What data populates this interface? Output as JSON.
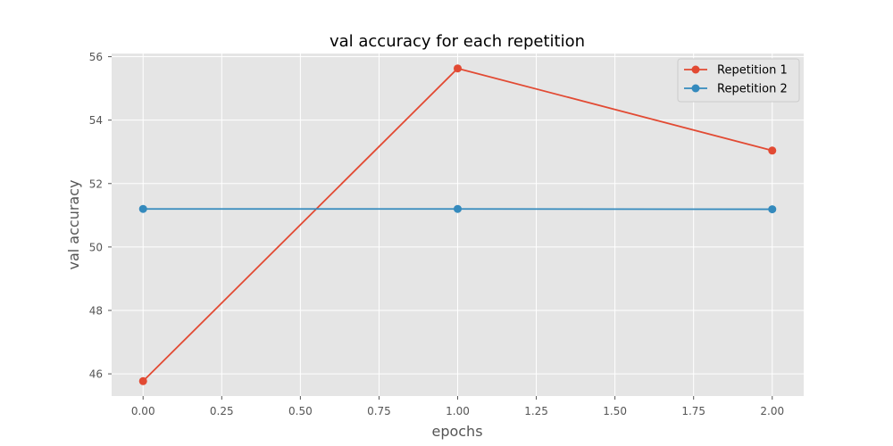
{
  "chart_data": {
    "type": "line",
    "title": "val accuracy for each repetition",
    "xlabel": "epochs",
    "ylabel": "val accuracy",
    "x": [
      0,
      1,
      2
    ],
    "xlim": [
      -0.1,
      2.1
    ],
    "ylim": [
      45.3,
      56.1
    ],
    "xticks": [
      "0.00",
      "0.25",
      "0.50",
      "0.75",
      "1.00",
      "1.25",
      "1.50",
      "1.75",
      "2.00"
    ],
    "yticks": [
      "46",
      "48",
      "50",
      "52",
      "54",
      "56"
    ],
    "grid": true,
    "legend_position": "upper right",
    "series": [
      {
        "name": "Repetition 1",
        "color": "#E24A33",
        "values": [
          45.77,
          55.63,
          53.04
        ]
      },
      {
        "name": "Repetition 2",
        "color": "#348ABD",
        "values": [
          51.2,
          51.2,
          51.19
        ]
      }
    ]
  }
}
